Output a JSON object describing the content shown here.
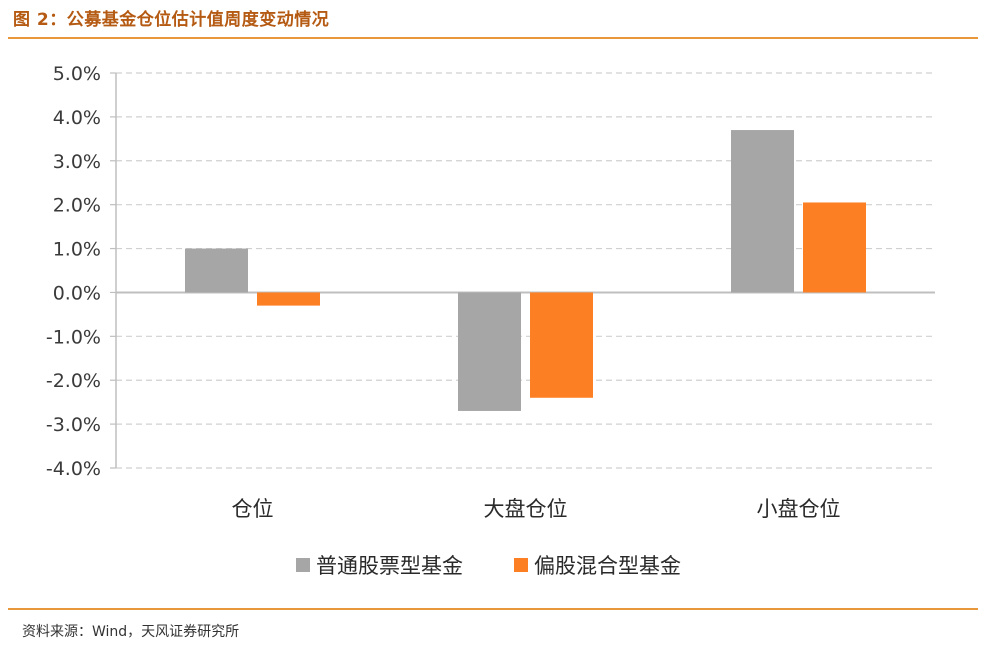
{
  "header": {
    "title": "图 2：公募基金仓位估计值周度变动情况"
  },
  "footer": {
    "source": "资料来源：Wind，天风证券研究所"
  },
  "colors": {
    "grid": "#d0d0d0",
    "axis": "#bfbfbf",
    "rule": "#e8983a",
    "title": "#b55a12"
  },
  "chart_data": {
    "type": "bar",
    "categories": [
      "仓位",
      "大盘仓位",
      "小盘仓位"
    ],
    "series": [
      {
        "name": "普通股票型基金",
        "color": "#a6a6a6",
        "values": [
          1.0,
          -2.7,
          3.7
        ]
      },
      {
        "name": "偏股混合型基金",
        "color": "#fd7f23",
        "values": [
          -0.3,
          -2.4,
          2.05
        ]
      }
    ],
    "ylim": [
      -4.0,
      5.0
    ],
    "yticks": [
      "5.0%",
      "4.0%",
      "3.0%",
      "2.0%",
      "1.0%",
      "0.0%",
      "-1.0%",
      "-2.0%",
      "-3.0%",
      "-4.0%"
    ],
    "grid": true,
    "legend_position": "bottom"
  }
}
